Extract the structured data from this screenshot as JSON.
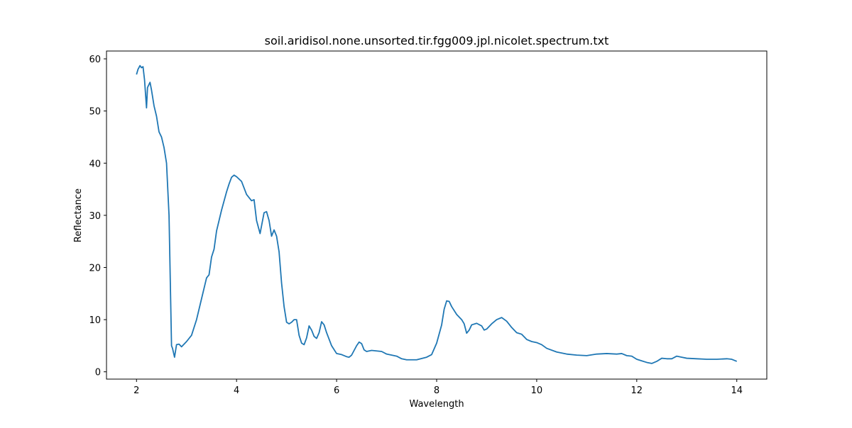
{
  "chart_data": {
    "type": "line",
    "title": "soil.aridisol.none.unsorted.tir.fgg009.jpl.nicolet.spectrum.txt",
    "x_label": "Wavelength",
    "y_label": "Reflectance",
    "color": "#1f77b4",
    "x": [
      2.0,
      2.03,
      2.07,
      2.1,
      2.13,
      2.16,
      2.2,
      2.22,
      2.27,
      2.3,
      2.35,
      2.4,
      2.45,
      2.5,
      2.55,
      2.6,
      2.65,
      2.68,
      2.7,
      2.72,
      2.76,
      2.8,
      2.85,
      2.9,
      3.0,
      3.1,
      3.2,
      3.3,
      3.4,
      3.45,
      3.5,
      3.55,
      3.6,
      3.7,
      3.8,
      3.85,
      3.9,
      3.95,
      4.0,
      4.1,
      4.2,
      4.3,
      4.35,
      4.4,
      4.47,
      4.5,
      4.55,
      4.6,
      4.65,
      4.7,
      4.75,
      4.8,
      4.85,
      4.9,
      4.95,
      5.0,
      5.05,
      5.1,
      5.15,
      5.2,
      5.25,
      5.3,
      5.35,
      5.4,
      5.45,
      5.5,
      5.55,
      5.6,
      5.65,
      5.7,
      5.75,
      5.8,
      5.9,
      6.0,
      6.1,
      6.2,
      6.25,
      6.3,
      6.4,
      6.45,
      6.5,
      6.55,
      6.6,
      6.7,
      6.8,
      6.9,
      7.0,
      7.2,
      7.3,
      7.4,
      7.6,
      7.8,
      7.9,
      8.0,
      8.1,
      8.15,
      8.2,
      8.25,
      8.3,
      8.4,
      8.5,
      8.55,
      8.6,
      8.65,
      8.7,
      8.8,
      8.9,
      8.95,
      9.0,
      9.1,
      9.2,
      9.3,
      9.4,
      9.5,
      9.6,
      9.7,
      9.8,
      9.9,
      10.0,
      10.1,
      10.2,
      10.4,
      10.6,
      10.8,
      11.0,
      11.2,
      11.4,
      11.6,
      11.7,
      11.8,
      11.9,
      12.0,
      12.1,
      12.2,
      12.3,
      12.4,
      12.5,
      12.6,
      12.7,
      12.8,
      12.9,
      13.0,
      13.2,
      13.4,
      13.6,
      13.8,
      13.9,
      14.0
    ],
    "values": [
      57,
      58,
      58.7,
      58.3,
      58.5,
      56,
      50.6,
      54.5,
      55.5,
      54,
      51,
      49,
      46,
      45,
      43,
      40,
      30,
      15,
      5,
      4.5,
      2.8,
      5.2,
      5.3,
      4.8,
      5.8,
      7,
      10,
      14,
      18,
      18.6,
      22,
      23.5,
      27,
      31,
      34.5,
      36,
      37.3,
      37.7,
      37.4,
      36.5,
      34,
      32.8,
      33,
      29,
      26.5,
      28,
      30.5,
      30.7,
      29,
      26,
      27.2,
      26,
      23,
      17,
      12.5,
      9.5,
      9.2,
      9.5,
      10,
      10,
      7,
      5.5,
      5.2,
      6.5,
      8.8,
      8,
      6.8,
      6.4,
      7.5,
      9.6,
      9,
      7.5,
      5,
      3.5,
      3.3,
      2.9,
      2.8,
      3.2,
      5,
      5.7,
      5.4,
      4.2,
      3.9,
      4.1,
      4,
      3.9,
      3.4,
      3,
      2.5,
      2.3,
      2.3,
      2.8,
      3.3,
      5.5,
      9,
      12,
      13.6,
      13.5,
      12.5,
      11,
      10,
      9.2,
      7.4,
      8,
      9,
      9.3,
      8.8,
      8,
      8.2,
      9.2,
      10,
      10.4,
      9.7,
      8.5,
      7.5,
      7.2,
      6.2,
      5.8,
      5.6,
      5.2,
      4.5,
      3.8,
      3.4,
      3.2,
      3.1,
      3.4,
      3.5,
      3.4,
      3.5,
      3.1,
      3,
      2.4,
      2.1,
      1.8,
      1.6,
      2,
      2.6,
      2.5,
      2.5,
      3,
      2.8,
      2.6,
      2.5,
      2.4,
      2.4,
      2.5,
      2.4,
      2
    ],
    "xlim": [
      1.4,
      14.6
    ],
    "ylim": [
      -1.4,
      61.5
    ],
    "xticks": [
      2,
      4,
      6,
      8,
      10,
      12,
      14
    ],
    "yticks": [
      0,
      10,
      20,
      30,
      40,
      50,
      60
    ]
  }
}
